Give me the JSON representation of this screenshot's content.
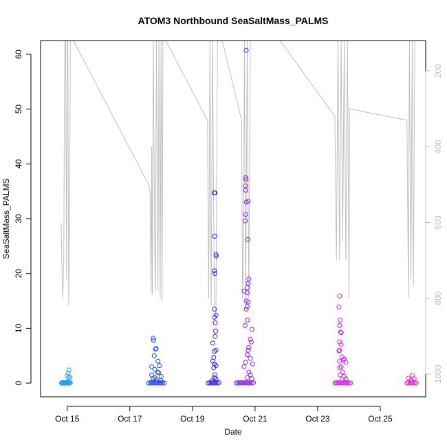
{
  "chart_data": {
    "type": "scatter",
    "title": "ATOM3 Northbound SeaSaltMass_PALMS",
    "xlabel": "Date",
    "ylabel": "SeaSaltMass_PALMS",
    "x_ticks": [
      {
        "day": 14.8,
        "label": "Oct 15"
      },
      {
        "day": 16.8,
        "label": "Oct 17"
      },
      {
        "day": 18.8,
        "label": "Oct 19"
      },
      {
        "day": 20.8,
        "label": "Oct 21"
      },
      {
        "day": 22.8,
        "label": "Oct 23"
      },
      {
        "day": 24.8,
        "label": "Oct 25"
      }
    ],
    "xlim": [
      13.95,
      26.25
    ],
    "ylim": [
      -2.5,
      62.5
    ],
    "y_ticks": [
      0,
      10,
      20,
      30,
      40,
      50,
      60
    ],
    "y2_ticks": [
      200,
      400,
      600,
      800,
      1000
    ],
    "y2lim": [
      1060,
      120
    ],
    "y2_color": "#bfbfbf",
    "grid": false,
    "series": [
      {
        "color": "#1aa3e8",
        "points": [
          [
            14.62,
            0
          ],
          [
            14.64,
            0.1
          ],
          [
            14.66,
            0
          ],
          [
            14.68,
            0.1
          ],
          [
            14.7,
            0
          ],
          [
            14.72,
            0.05
          ],
          [
            14.74,
            0
          ],
          [
            14.76,
            0.1
          ],
          [
            14.78,
            0
          ],
          [
            14.8,
            0.2
          ],
          [
            14.82,
            0.1
          ],
          [
            14.84,
            0
          ],
          [
            14.86,
            0.1
          ],
          [
            14.88,
            0
          ],
          [
            14.9,
            0.1
          ],
          [
            14.85,
            1.0
          ],
          [
            14.8,
            1.3
          ],
          [
            14.83,
            1.8
          ],
          [
            14.86,
            2.4
          ],
          [
            14.89,
            1.1
          ]
        ]
      },
      {
        "color": "#1a46e8",
        "points": [
          [
            17.4,
            0
          ],
          [
            17.45,
            0.1
          ],
          [
            17.5,
            0
          ],
          [
            17.55,
            0.1
          ],
          [
            17.6,
            0
          ],
          [
            17.65,
            0.1
          ],
          [
            17.7,
            0
          ],
          [
            17.75,
            0.1
          ],
          [
            17.8,
            0
          ],
          [
            17.85,
            0.1
          ],
          [
            17.9,
            0
          ],
          [
            17.55,
            8.2
          ],
          [
            17.56,
            7.8
          ],
          [
            17.62,
            6.2
          ],
          [
            17.64,
            6.3
          ],
          [
            17.58,
            5.0
          ],
          [
            17.7,
            4.0
          ],
          [
            17.75,
            3.2
          ],
          [
            17.6,
            2.5
          ],
          [
            17.68,
            2.0
          ],
          [
            17.5,
            1.5
          ],
          [
            17.8,
            1.2
          ],
          [
            17.55,
            0.8
          ],
          [
            17.65,
            0.6
          ],
          [
            17.72,
            1.9
          ],
          [
            17.78,
            0.5
          ],
          [
            17.5,
            3.0
          ],
          [
            17.6,
            1.0
          ]
        ]
      },
      {
        "color": "#3a1ee0",
        "points": [
          [
            19.3,
            0
          ],
          [
            19.35,
            0.1
          ],
          [
            19.4,
            0
          ],
          [
            19.45,
            0.1
          ],
          [
            19.5,
            0
          ],
          [
            19.55,
            0.1
          ],
          [
            19.6,
            0
          ],
          [
            19.65,
            0.1
          ],
          [
            19.5,
            34.7
          ],
          [
            19.52,
            34.7
          ],
          [
            19.51,
            26.8
          ],
          [
            19.55,
            23.5
          ],
          [
            19.56,
            23.2
          ],
          [
            19.5,
            20.5
          ],
          [
            19.52,
            20.0
          ],
          [
            19.55,
            12.4
          ],
          [
            19.5,
            12.0
          ],
          [
            19.53,
            11.0
          ],
          [
            19.5,
            13.5
          ],
          [
            19.54,
            9.5
          ],
          [
            19.52,
            8.5
          ],
          [
            19.45,
            7.3
          ],
          [
            19.55,
            6.0
          ],
          [
            19.5,
            5.8
          ],
          [
            19.48,
            4.7
          ],
          [
            19.45,
            4.0
          ],
          [
            19.5,
            3.5
          ],
          [
            19.55,
            3.2
          ],
          [
            19.48,
            2.8
          ],
          [
            19.52,
            1.5
          ],
          [
            19.5,
            1.0
          ],
          [
            19.55,
            0.8
          ],
          [
            19.45,
            0.5
          ]
        ]
      },
      {
        "color": "#8a1ee8",
        "points": [
          [
            20.2,
            0
          ],
          [
            20.25,
            0.1
          ],
          [
            20.3,
            0
          ],
          [
            20.35,
            0.1
          ],
          [
            20.4,
            0
          ],
          [
            20.45,
            0.1
          ],
          [
            20.5,
            0
          ],
          [
            20.55,
            0.1
          ],
          [
            20.6,
            0
          ],
          [
            20.65,
            0.1
          ],
          [
            20.7,
            0
          ],
          [
            20.75,
            0.1
          ],
          [
            20.52,
            60.7
          ],
          [
            20.5,
            37.5
          ],
          [
            20.51,
            37.2
          ],
          [
            20.49,
            36.0
          ],
          [
            20.5,
            35.2
          ],
          [
            20.52,
            33.0
          ],
          [
            20.58,
            33.2
          ],
          [
            20.5,
            30.8
          ],
          [
            20.49,
            29.6
          ],
          [
            20.57,
            26.2
          ],
          [
            20.6,
            19.0
          ],
          [
            20.58,
            18.2
          ],
          [
            20.56,
            17.4
          ],
          [
            20.45,
            16.8
          ],
          [
            20.55,
            16.5
          ],
          [
            20.52,
            15.0
          ],
          [
            20.58,
            14.8
          ],
          [
            20.55,
            14.0
          ],
          [
            20.52,
            13.5
          ],
          [
            20.56,
            11.5
          ],
          [
            20.48,
            10.5
          ],
          [
            20.7,
            9.8
          ],
          [
            20.65,
            8.0
          ],
          [
            20.68,
            7.5
          ],
          [
            20.6,
            6.5
          ],
          [
            20.58,
            6.0
          ],
          [
            20.55,
            5.2
          ],
          [
            20.65,
            4.5
          ],
          [
            20.5,
            3.8
          ],
          [
            20.72,
            3.5
          ],
          [
            20.45,
            3.0
          ],
          [
            20.6,
            2.0
          ],
          [
            20.65,
            1.5
          ],
          [
            20.55,
            1.0
          ],
          [
            20.7,
            0.8
          ]
        ]
      },
      {
        "color": "#c81ee8",
        "points": [
          [
            23.35,
            0
          ],
          [
            23.4,
            0.1
          ],
          [
            23.45,
            0
          ],
          [
            23.5,
            0.1
          ],
          [
            23.55,
            0
          ],
          [
            23.6,
            0.1
          ],
          [
            23.65,
            0
          ],
          [
            23.7,
            0.1
          ],
          [
            23.75,
            0
          ],
          [
            23.8,
            0.1
          ],
          [
            23.85,
            0
          ],
          [
            23.5,
            15.9
          ],
          [
            23.48,
            13.9
          ],
          [
            23.52,
            11.5
          ],
          [
            23.5,
            10.5
          ],
          [
            23.53,
            9.3
          ],
          [
            23.55,
            9.2
          ],
          [
            23.5,
            7.5
          ],
          [
            23.55,
            7.0
          ],
          [
            23.5,
            6.0
          ],
          [
            23.48,
            5.9
          ],
          [
            23.58,
            4.8
          ],
          [
            23.65,
            4.4
          ],
          [
            23.5,
            4.0
          ],
          [
            23.62,
            4.2
          ],
          [
            23.7,
            3.8
          ],
          [
            23.55,
            3.0
          ],
          [
            23.5,
            2.8
          ],
          [
            23.6,
            2.0
          ],
          [
            23.52,
            1.5
          ],
          [
            23.65,
            1.2
          ],
          [
            23.7,
            0.8
          ],
          [
            23.58,
            0.6
          ]
        ]
      },
      {
        "color": "#ee1ecf",
        "points": [
          [
            25.65,
            0
          ],
          [
            25.7,
            0.1
          ],
          [
            25.75,
            0
          ],
          [
            25.8,
            0.1
          ],
          [
            25.85,
            0
          ],
          [
            25.9,
            0.1
          ],
          [
            25.95,
            0
          ],
          [
            25.7,
            0.9
          ],
          [
            25.82,
            1.4
          ],
          [
            25.88,
            0.8
          ],
          [
            25.78,
            0.5
          ]
        ]
      }
    ],
    "altitude_line": {
      "color": "#bfbfbf",
      "points": [
        [
          14.61,
          600
        ],
        [
          14.63,
          720
        ],
        [
          14.66,
          800
        ],
        [
          14.69,
          700
        ],
        [
          14.72,
          120
        ],
        [
          14.75,
          120
        ],
        [
          14.78,
          750
        ],
        [
          14.8,
          120
        ],
        [
          14.82,
          120
        ],
        [
          14.85,
          820
        ],
        [
          14.88,
          600
        ],
        [
          14.9,
          120
        ],
        [
          15.0,
          120
        ],
        [
          17.4,
          500
        ],
        [
          17.45,
          520
        ],
        [
          17.48,
          790
        ],
        [
          17.5,
          400
        ],
        [
          17.52,
          790
        ],
        [
          17.55,
          120
        ],
        [
          17.6,
          700
        ],
        [
          17.62,
          780
        ],
        [
          17.65,
          120
        ],
        [
          17.7,
          780
        ],
        [
          17.73,
          120
        ],
        [
          17.77,
          800
        ],
        [
          17.8,
          120
        ],
        [
          17.83,
          810
        ],
        [
          17.86,
          120
        ],
        [
          17.9,
          120
        ],
        [
          17.95,
          120
        ],
        [
          19.28,
          330
        ],
        [
          19.32,
          800
        ],
        [
          19.36,
          120
        ],
        [
          19.4,
          820
        ],
        [
          19.44,
          120
        ],
        [
          19.5,
          820
        ],
        [
          19.55,
          850
        ],
        [
          19.6,
          120
        ],
        [
          19.65,
          120
        ],
        [
          19.75,
          120
        ],
        [
          20.37,
          330
        ],
        [
          20.4,
          800
        ],
        [
          20.43,
          700
        ],
        [
          20.46,
          120
        ],
        [
          20.5,
          820
        ],
        [
          20.55,
          120
        ],
        [
          20.6,
          800
        ],
        [
          20.65,
          120
        ],
        [
          20.7,
          120
        ],
        [
          21.6,
          120
        ],
        [
          23.35,
          320
        ],
        [
          23.4,
          700
        ],
        [
          23.45,
          120
        ],
        [
          23.5,
          700
        ],
        [
          23.55,
          120
        ],
        [
          23.6,
          650
        ],
        [
          23.65,
          120
        ],
        [
          23.7,
          700
        ],
        [
          23.75,
          120
        ],
        [
          23.8,
          800
        ],
        [
          23.82,
          300
        ],
        [
          25.65,
          330
        ],
        [
          25.7,
          800
        ],
        [
          25.73,
          120
        ],
        [
          25.78,
          750
        ],
        [
          25.82,
          120
        ],
        [
          25.86,
          770
        ],
        [
          25.9,
          120
        ],
        [
          25.95,
          120
        ]
      ]
    }
  }
}
